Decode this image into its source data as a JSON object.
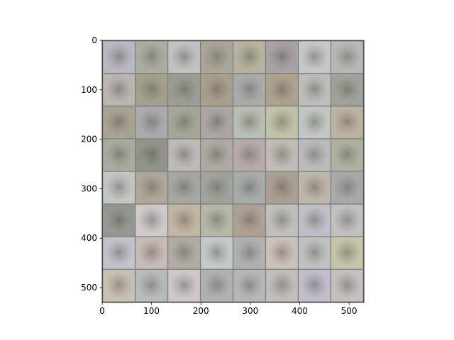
{
  "chart_data": {
    "type": "heatmap",
    "description_kind": "image-grid",
    "grid": {
      "rows": 8,
      "cols": 8,
      "tile_size": 64,
      "padding": 2
    },
    "x_axis": {
      "range": [
        0,
        530
      ],
      "ticks": [
        0,
        100,
        200,
        300,
        400,
        500
      ],
      "tick_labels": [
        "0",
        "100",
        "200",
        "300",
        "400",
        "500"
      ]
    },
    "y_axis": {
      "range": [
        0,
        530
      ],
      "inverted": true,
      "ticks": [
        0,
        100,
        200,
        300,
        400,
        500
      ],
      "tick_labels": [
        "0",
        "100",
        "200",
        "300",
        "400",
        "500"
      ]
    },
    "grid_lines": false,
    "border_color": "#7f7f7f",
    "tile_colors": [
      [
        "#b9b7c2",
        "#a9ab9d",
        "#c4c1c2",
        "#a7a493",
        "#b6b29c",
        "#a59ea4",
        "#c6c9ca",
        "#b7b8b6"
      ],
      [
        "#bbb6b1",
        "#a09d86",
        "#98998d",
        "#a69c86",
        "#a9a9a6",
        "#a9a18a",
        "#c0bcba",
        "#9ba096"
      ],
      [
        "#a8a08f",
        "#a9a9ac",
        "#a2a594",
        "#aaa4a2",
        "#b8bfb3",
        "#c3c3a6",
        "#c2c9c3",
        "#bcb29f"
      ],
      [
        "#a4aa9c",
        "#8e8f86",
        "#c0b9b9",
        "#aea7a0",
        "#b5aaa8",
        "#c2bcb7",
        "#bcbbbb",
        "#aeb09d"
      ],
      [
        "#c2c8c4",
        "#aea595",
        "#a2a59e",
        "#9ca199",
        "#a5aba7",
        "#a79c8f",
        "#bdb7a8",
        "#a5a8a6"
      ],
      [
        "#8f958d",
        "#d2cbcc",
        "#c2b6a1",
        "#b5b7a4",
        "#ad9e91",
        "#c1c0bb",
        "#bec0cb",
        "#c3c0c0"
      ],
      [
        "#c4c2cc",
        "#c8bbb6",
        "#b0aaa0",
        "#c4cbcd",
        "#b0b0ad",
        "#cbc2bc",
        "#c0c2c2",
        "#c8c5a7"
      ],
      [
        "#c8c2b1",
        "#b8bbbb",
        "#d1c8cd",
        "#b0b0ae",
        "#b6b6b6",
        "#c3bdb8",
        "#c3bdcd",
        "#c7c0c0"
      ]
    ]
  }
}
